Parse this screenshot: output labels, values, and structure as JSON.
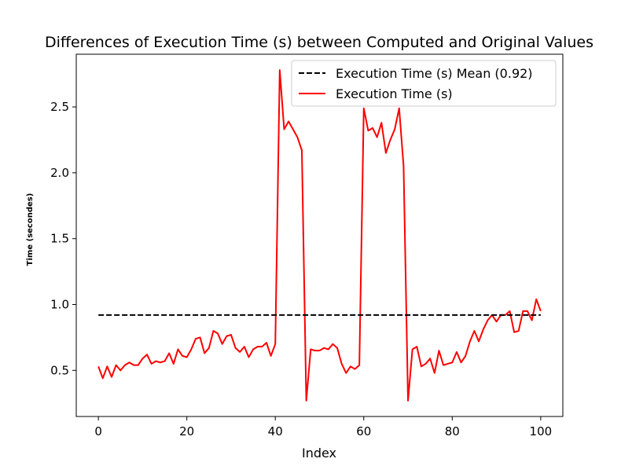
{
  "chart_data": {
    "type": "line",
    "title": "Differences of Execution Time (s) between Computed and Original Values",
    "xlabel": "Index",
    "ylabel": "Time (secondes)",
    "xlim": [
      -5,
      105
    ],
    "ylim": [
      0.15,
      2.9
    ],
    "xticks": [
      0,
      20,
      40,
      60,
      80,
      100
    ],
    "yticks": [
      0.5,
      1.0,
      1.5,
      2.0,
      2.5
    ],
    "xtick_labels": [
      "0",
      "20",
      "40",
      "60",
      "80",
      "100"
    ],
    "ytick_labels": [
      "0.5",
      "1.0",
      "1.5",
      "2.0",
      "2.5"
    ],
    "grid": false,
    "legend_position": "top-right",
    "series": [
      {
        "name": "Execution Time (s)",
        "color": "#ff0000",
        "style": "solid",
        "x": [
          0,
          1,
          2,
          3,
          4,
          5,
          6,
          7,
          8,
          9,
          10,
          11,
          12,
          13,
          14,
          15,
          16,
          17,
          18,
          19,
          20,
          21,
          22,
          23,
          24,
          25,
          26,
          27,
          28,
          29,
          30,
          31,
          32,
          33,
          34,
          35,
          36,
          37,
          38,
          39,
          40,
          41,
          42,
          43,
          44,
          45,
          46,
          47,
          48,
          49,
          50,
          51,
          52,
          53,
          54,
          55,
          56,
          57,
          58,
          59,
          60,
          61,
          62,
          63,
          64,
          65,
          66,
          67,
          68,
          69,
          70,
          71,
          72,
          73,
          74,
          75,
          76,
          77,
          78,
          79,
          80,
          81,
          82,
          83,
          84,
          85,
          86,
          87,
          88,
          89,
          90,
          91,
          92,
          93,
          94,
          95,
          96,
          97,
          98,
          99,
          100
        ],
        "y": [
          0.53,
          0.44,
          0.53,
          0.45,
          0.54,
          0.5,
          0.54,
          0.56,
          0.54,
          0.54,
          0.59,
          0.62,
          0.55,
          0.57,
          0.56,
          0.57,
          0.63,
          0.55,
          0.66,
          0.61,
          0.6,
          0.66,
          0.74,
          0.75,
          0.63,
          0.67,
          0.8,
          0.78,
          0.7,
          0.76,
          0.77,
          0.67,
          0.64,
          0.68,
          0.6,
          0.66,
          0.68,
          0.68,
          0.71,
          0.61,
          0.7,
          2.78,
          2.33,
          2.39,
          2.33,
          2.27,
          2.17,
          0.27,
          0.66,
          0.65,
          0.65,
          0.67,
          0.66,
          0.7,
          0.67,
          0.55,
          0.48,
          0.53,
          0.51,
          0.54,
          2.49,
          2.32,
          2.34,
          2.27,
          2.38,
          2.15,
          2.25,
          2.33,
          2.49,
          2.05,
          0.27,
          0.66,
          0.68,
          0.53,
          0.55,
          0.59,
          0.48,
          0.65,
          0.54,
          0.55,
          0.56,
          0.64,
          0.56,
          0.61,
          0.72,
          0.8,
          0.72,
          0.81,
          0.88,
          0.92,
          0.87,
          0.92,
          0.92,
          0.95,
          0.79,
          0.8,
          0.95,
          0.95,
          0.88,
          1.04,
          0.95
        ]
      },
      {
        "name": "Execution Time (s) Mean (0.92)",
        "color": "#000000",
        "style": "dashed",
        "x": [
          0,
          100
        ],
        "y": [
          0.92,
          0.92
        ]
      }
    ]
  }
}
